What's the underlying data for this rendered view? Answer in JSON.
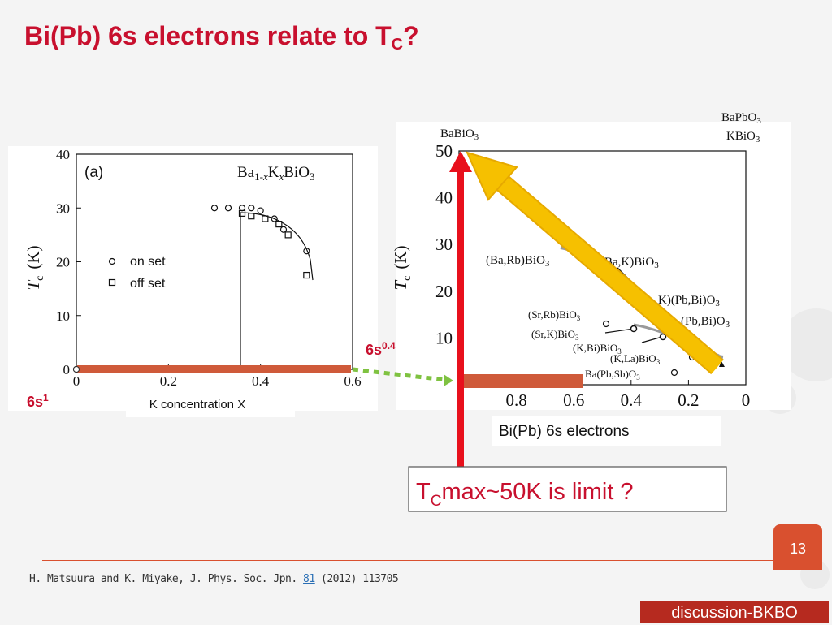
{
  "slide": {
    "title_main": "Bi(Pb) 6s electrons relate to T",
    "title_sub": "C",
    "title_end": "?",
    "page_number": "13",
    "citation_prefix": "H. Matsuura and K. Miyake,  J. Phys. Soc. Jpn.",
    "citation_volume": "81",
    "citation_suffix": "(2012) 113705",
    "footer_tag": "discussion-BKBO"
  },
  "annotations": {
    "six_s_04_base": "6s",
    "six_s_04_exp": "0.4",
    "six_s_1_base": "6s",
    "six_s_1_exp": "1",
    "bi_pb_label": "Bi(Pb) 6s electrons",
    "limit_T": "T",
    "limit_sub": "C",
    "limit_rest": "max~50K is limit ?",
    "colors": {
      "red_arrow": "#e8101c",
      "yellow_arrow": "#f6c000",
      "bar": "#cf5a3a",
      "dots": "#7fc241",
      "title": "#c8102e"
    }
  },
  "chart_data": [
    {
      "type": "scatter",
      "panel_label": "(a)",
      "compound": "Ba1-xKxBiO3",
      "compound_parts": [
        "Ba",
        "1-",
        "x",
        "K",
        "x",
        "BiO",
        "3"
      ],
      "xlabel": "K concentration X",
      "ylabel": "T",
      "ylabel_sub": "c",
      "ylabel_unit": "(K)",
      "xlim": [
        0,
        0.6
      ],
      "ylim": [
        0,
        40
      ],
      "xticks": [
        0,
        0.2,
        0.4,
        0.6
      ],
      "xtick_labels": [
        "0",
        "0.2",
        "0.4",
        "0.6"
      ],
      "yticks": [
        0,
        10,
        20,
        30,
        40
      ],
      "ytick_labels": [
        "0",
        "10",
        "20",
        "30",
        "40"
      ],
      "legend": [
        "on set",
        "off set"
      ],
      "series": [
        {
          "name": "on set",
          "marker": "circle",
          "x": [
            0,
            0.3,
            0.33,
            0.36,
            0.38,
            0.4,
            0.43,
            0.45,
            0.5
          ],
          "y": [
            0,
            30,
            30,
            30,
            30,
            29.5,
            28,
            26,
            22
          ]
        },
        {
          "name": "off set",
          "marker": "square",
          "x": [
            0.36,
            0.38,
            0.41,
            0.44,
            0.46,
            0.5
          ],
          "y": [
            29,
            28.5,
            28,
            27,
            25,
            17.5
          ]
        }
      ]
    },
    {
      "type": "line",
      "ylabel": "T",
      "ylabel_sub": "c",
      "ylabel_unit": "(K)",
      "xlim": [
        1.0,
        0
      ],
      "ylim": [
        0,
        50
      ],
      "xticks": [
        0.8,
        0.6,
        0.4,
        0.2,
        0
      ],
      "xtick_labels": [
        "0.8",
        "0.6",
        "0.4",
        "0.2",
        "0"
      ],
      "yticks": [
        10,
        20,
        30,
        40,
        50
      ],
      "ytick_labels": [
        "10",
        "20",
        "30",
        "40",
        "50"
      ],
      "top_labels": [
        "BaBiO3",
        "BaPbO3",
        "KBiO3"
      ],
      "compound_labels": [
        "(Ba,Rb)BiO3",
        "Ba,K)BiO3",
        "K)(Pb,Bi)O3",
        "(Sr,Rb)BiO3",
        "(Pb,Bi)O3",
        "(Sr,K)BiO3",
        "(K,Bi)BiO3",
        "(K,La)BiO3",
        "Ba(Pb,Sb)O3"
      ]
    }
  ]
}
